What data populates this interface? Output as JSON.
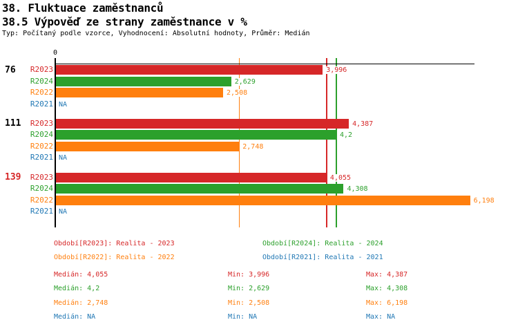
{
  "chart_data": {
    "type": "bar",
    "orientation": "horizontal",
    "title": "38. Fluktuace zaměstnanců",
    "subtitle": "38.5 Výpověď ze strany zaměstnance v %",
    "meta": "Typ: Počítaný podle vzorce, Vyhodnocení: Absolutní hodnoty, Průměr: Medián",
    "origin_label": "0",
    "xlim": [
      0,
      6.264
    ],
    "grid": false,
    "groups": [
      {
        "label": "76",
        "label_color": "#000000"
      },
      {
        "label": "111",
        "label_color": "#000000"
      },
      {
        "label": "139",
        "label_color": "#d62728"
      }
    ],
    "series": [
      {
        "name": "R2023",
        "color": "#d62728",
        "values": [
          3.996,
          4.387,
          4.055
        ],
        "value_labels": [
          "3,996",
          "4,387",
          "4,055"
        ]
      },
      {
        "name": "R2024",
        "color": "#2ca02c",
        "values": [
          2.629,
          4.2,
          4.308
        ],
        "value_labels": [
          "2,629",
          "4,2",
          "4,308"
        ]
      },
      {
        "name": "R2022",
        "color": "#ff7f0e",
        "values": [
          2.508,
          2.748,
          6.198
        ],
        "value_labels": [
          "2,508",
          "2,748",
          "6,198"
        ]
      },
      {
        "name": "R2021",
        "color": "#1f77b4",
        "values": [
          null,
          null,
          null
        ],
        "value_labels": [
          "NA",
          "NA",
          "NA"
        ]
      }
    ],
    "median_lines": [
      {
        "color": "#ff7f0e",
        "value": 2.748
      },
      {
        "color": "#d62728",
        "value": 4.055
      },
      {
        "color": "#2ca02c",
        "value": 4.2
      }
    ]
  },
  "legend": {
    "items": [
      {
        "label": "Období[R2023]: Realita - 2023",
        "color": "#d62728"
      },
      {
        "label": "Období[R2024]: Realita - 2024",
        "color": "#2ca02c"
      },
      {
        "label": "Období[R2022]: Realita - 2022",
        "color": "#ff7f0e"
      },
      {
        "label": "Období[R2021]: Realita - 2021",
        "color": "#1f77b4"
      }
    ]
  },
  "stats": {
    "rows": [
      {
        "color": "#d62728",
        "median": "Medián: 4,055",
        "min": "Min: 3,996",
        "max": "Max: 4,387"
      },
      {
        "color": "#2ca02c",
        "median": "Medián: 4,2",
        "min": "Min: 2,629",
        "max": "Max: 4,308"
      },
      {
        "color": "#ff7f0e",
        "median": "Medián: 2,748",
        "min": "Min: 2,508",
        "max": "Max: 6,198"
      },
      {
        "color": "#1f77b4",
        "median": "Medián: NA",
        "min": "Min: NA",
        "max": "Max: NA"
      }
    ]
  }
}
